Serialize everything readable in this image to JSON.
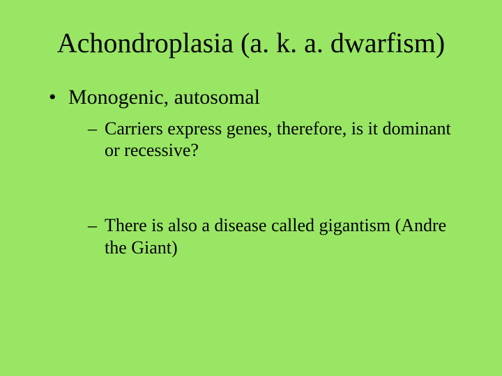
{
  "colors": {
    "background": "#99e664",
    "text": "#000000"
  },
  "typography": {
    "font_family": "Times New Roman",
    "title_fontsize_pt": 40,
    "level1_fontsize_pt": 30,
    "level2_fontsize_pt": 26
  },
  "slide": {
    "title": "Achondroplasia (a. k. a. dwarfism)",
    "bullets": [
      {
        "text": "Monogenic, autosomal",
        "sub": [
          {
            "text": "Carriers express genes, therefore, is it dominant or recessive?"
          },
          {
            "text": "There is also a disease called gigantism (Andre the Giant)"
          }
        ]
      }
    ]
  }
}
